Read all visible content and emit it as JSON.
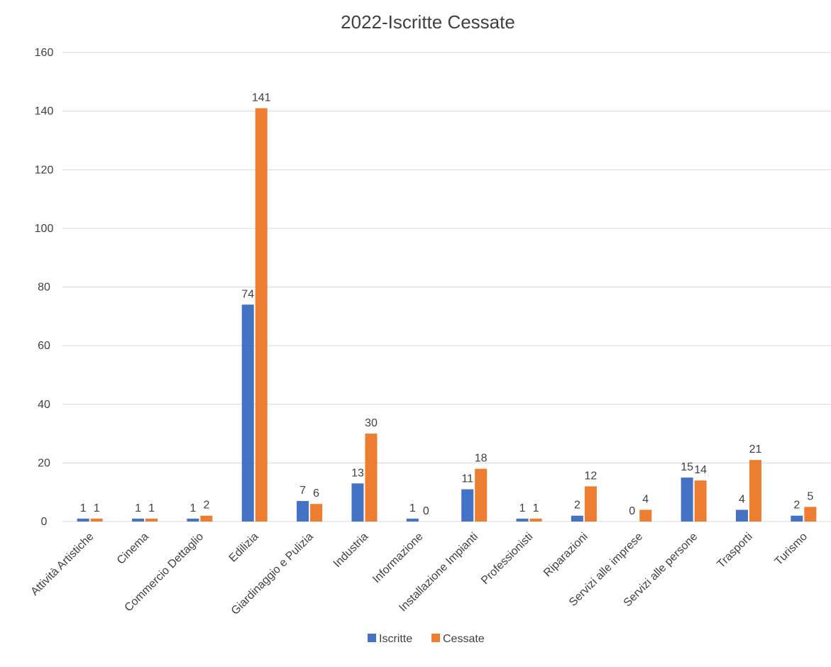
{
  "chart_data": {
    "type": "bar",
    "title": "2022-Iscritte Cessate",
    "xlabel": "",
    "ylabel": "",
    "ylim": [
      0,
      160
    ],
    "yticks": [
      0,
      20,
      40,
      60,
      80,
      100,
      120,
      140,
      160
    ],
    "grid": true,
    "legend_position": "bottom",
    "categories": [
      "Attività Artistiche",
      "Cinema",
      "Commercio Dettaglio",
      "Edilizia",
      "Giardinaggio e Pulizia",
      "Industria",
      "Informazione",
      "Installazione Impianti",
      "Professionisti",
      "Riparazioni",
      "Servizi alle imprese",
      "Servizi alle persone",
      "Trasporti",
      "Turismo"
    ],
    "series": [
      {
        "name": "Iscritte",
        "color": "#4472C4",
        "values": [
          1,
          1,
          1,
          74,
          7,
          13,
          1,
          11,
          1,
          2,
          0,
          15,
          4,
          2
        ]
      },
      {
        "name": "Cessate",
        "color": "#ED7D31",
        "values": [
          1,
          1,
          2,
          141,
          6,
          30,
          0,
          18,
          1,
          12,
          4,
          14,
          21,
          5
        ]
      }
    ]
  }
}
